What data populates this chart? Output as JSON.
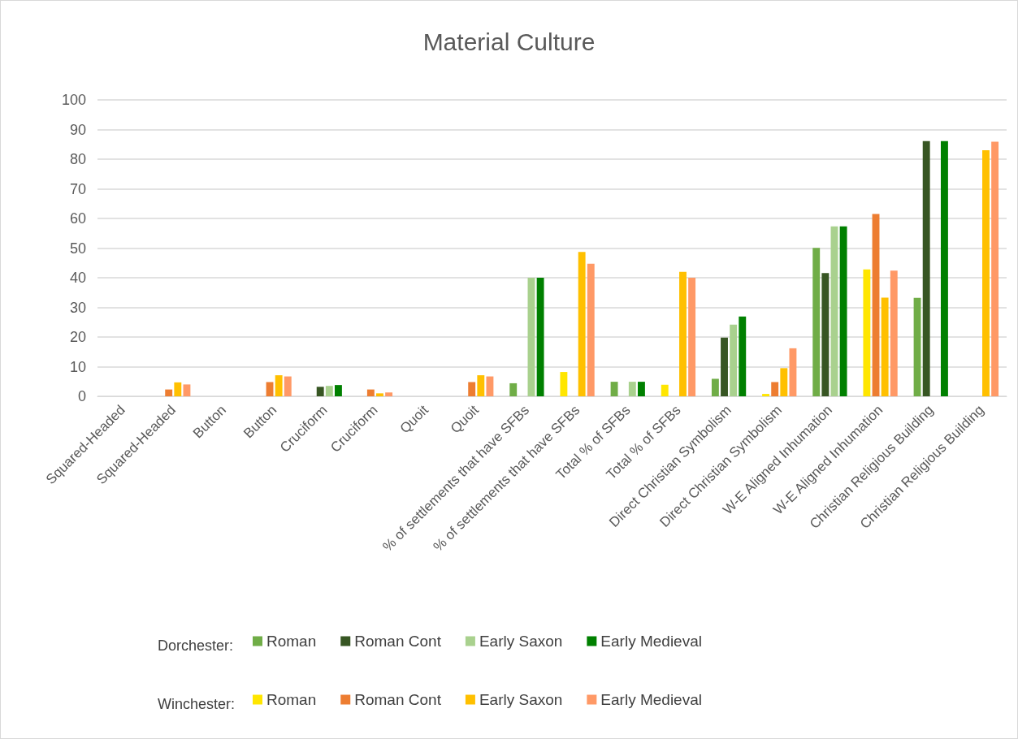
{
  "chart_data": {
    "type": "bar",
    "title": "Material Culture",
    "categories": [
      "Squared-Headed",
      "Squared-Headed",
      "Button",
      "Button",
      "Cruciform",
      "Cruciform",
      "Quoit",
      "Quoit",
      "% of settlements that have SFBs",
      "% of settlements that have SFBs",
      "Total % of SFBs",
      "Total % of SFBs",
      "Direct Christian Symbolism",
      "Direct Christian Symbolism",
      "W-E Aligned Inhumation",
      "W-E Aligned Inhumation",
      "Christian Religious Building",
      "Christian Religious Building"
    ],
    "series": [
      {
        "name": "Roman",
        "color": "#70ad47",
        "values": [
          0,
          null,
          0,
          null,
          0,
          null,
          0,
          null,
          4.4,
          null,
          4.9,
          null,
          5.9,
          null,
          50.1,
          null,
          33.2,
          null
        ]
      },
      {
        "name": "Roman Cont",
        "color": "#375623",
        "values": [
          0,
          null,
          0,
          null,
          3.2,
          null,
          0,
          null,
          0,
          null,
          0,
          null,
          19.8,
          null,
          41.6,
          null,
          86.1,
          null
        ]
      },
      {
        "name": "Early Saxon",
        "color": "#a9d18e",
        "values": [
          0,
          null,
          0,
          null,
          3.5,
          null,
          0,
          null,
          40,
          null,
          4.9,
          null,
          24.2,
          null,
          57.3,
          null,
          0,
          null
        ]
      },
      {
        "name": "Early Medieval",
        "color": "#008000",
        "values": [
          0,
          null,
          0,
          null,
          3.8,
          null,
          0,
          null,
          40,
          null,
          4.9,
          null,
          26.9,
          null,
          57.3,
          null,
          86.1,
          null
        ]
      },
      {
        "name": "Roman",
        "color": "#ffe600",
        "values": [
          null,
          0,
          null,
          0,
          null,
          0,
          null,
          0,
          null,
          8.2,
          null,
          3.9,
          null,
          0.8,
          null,
          42.8,
          null,
          0
        ]
      },
      {
        "name": "Roman Cont",
        "color": "#ed7d31",
        "values": [
          null,
          2.3,
          null,
          4.8,
          null,
          2.3,
          null,
          4.8,
          null,
          0,
          null,
          0,
          null,
          4.8,
          null,
          61.5,
          null,
          0
        ]
      },
      {
        "name": "Early Saxon",
        "color": "#ffc000",
        "values": [
          null,
          4.7,
          null,
          7.1,
          null,
          1.0,
          null,
          7.1,
          null,
          48.7,
          null,
          42.0,
          null,
          9.5,
          null,
          33.3,
          null,
          83.0
        ]
      },
      {
        "name": "Early Medieval",
        "color": "#ff9966",
        "values": [
          null,
          4.0,
          null,
          6.7,
          null,
          1.3,
          null,
          6.7,
          null,
          44.7,
          null,
          40.0,
          null,
          16.2,
          null,
          42.4,
          null,
          85.9
        ]
      }
    ],
    "ylim": [
      0,
      100
    ],
    "yticks": [
      0,
      10,
      20,
      30,
      40,
      50,
      60,
      70,
      80,
      90,
      100
    ],
    "grid": "y",
    "legend": "bottom",
    "annotations": [
      "Dorchester:",
      "Winchester:"
    ]
  }
}
